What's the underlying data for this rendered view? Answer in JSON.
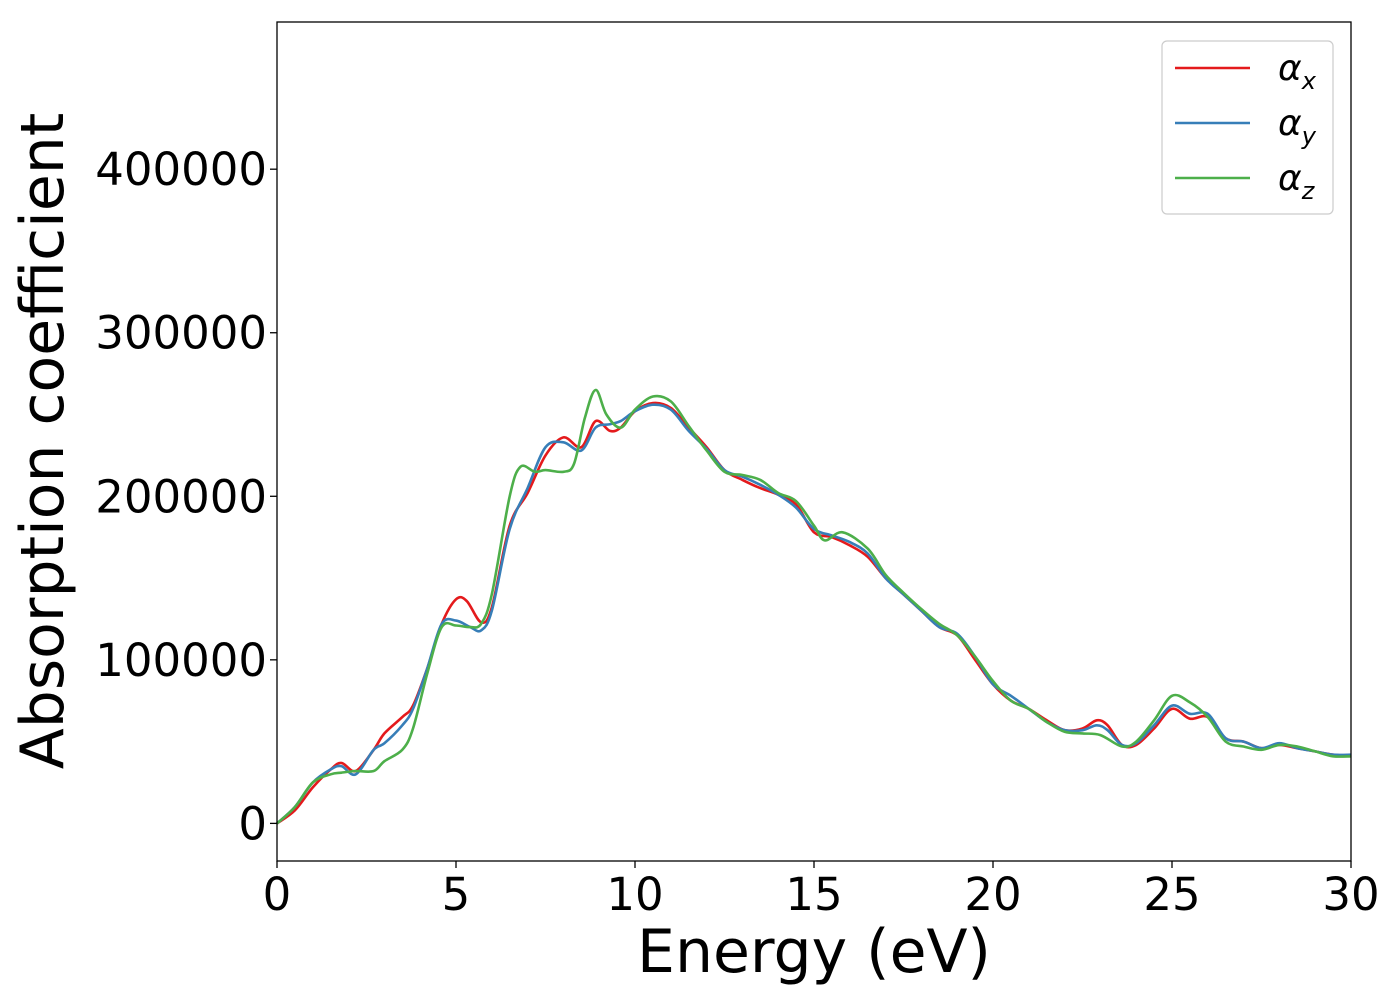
{
  "chart_data": {
    "type": "line",
    "title": "",
    "xlabel": "Energy (eV)",
    "ylabel": "Absorption coefficient",
    "xlim": [
      0,
      30
    ],
    "ylim": [
      -23000,
      490000
    ],
    "x_ticks": [
      0,
      5,
      10,
      15,
      20,
      25,
      30
    ],
    "y_ticks": [
      0,
      100000,
      200000,
      300000,
      400000
    ],
    "grid": false,
    "legend_position": "top-right",
    "series": [
      {
        "name": "α",
        "subscript": "x",
        "color": "#e41a1c",
        "points": [
          [
            0,
            0
          ],
          [
            0.5,
            8000
          ],
          [
            1,
            22000
          ],
          [
            1.5,
            33000
          ],
          [
            1.8,
            37000
          ],
          [
            2.2,
            32000
          ],
          [
            2.7,
            45000
          ],
          [
            3,
            55000
          ],
          [
            3.5,
            65000
          ],
          [
            3.8,
            72000
          ],
          [
            4.2,
            95000
          ],
          [
            4.6,
            122000
          ],
          [
            5,
            137000
          ],
          [
            5.3,
            136000
          ],
          [
            5.7,
            123000
          ],
          [
            6,
            132000
          ],
          [
            6.5,
            182000
          ],
          [
            7,
            202000
          ],
          [
            7.5,
            225000
          ],
          [
            8,
            236000
          ],
          [
            8.5,
            230000
          ],
          [
            8.9,
            246000
          ],
          [
            9.3,
            240000
          ],
          [
            9.6,
            242000
          ],
          [
            10,
            252000
          ],
          [
            10.5,
            257000
          ],
          [
            11,
            254000
          ],
          [
            11.5,
            242000
          ],
          [
            12,
            230000
          ],
          [
            12.5,
            216000
          ],
          [
            13,
            210000
          ],
          [
            13.5,
            205000
          ],
          [
            14,
            201000
          ],
          [
            14.5,
            195000
          ],
          [
            15,
            178000
          ],
          [
            15.5,
            175000
          ],
          [
            16,
            170000
          ],
          [
            16.5,
            163000
          ],
          [
            17,
            150000
          ],
          [
            17.5,
            140000
          ],
          [
            18,
            130000
          ],
          [
            18.5,
            120000
          ],
          [
            19,
            115000
          ],
          [
            19.5,
            100000
          ],
          [
            20,
            85000
          ],
          [
            20.5,
            75000
          ],
          [
            21,
            70000
          ],
          [
            21.5,
            63000
          ],
          [
            22,
            57000
          ],
          [
            22.5,
            58000
          ],
          [
            22.9,
            63000
          ],
          [
            23.2,
            60000
          ],
          [
            23.6,
            48000
          ],
          [
            24,
            48000
          ],
          [
            24.5,
            58000
          ],
          [
            25,
            70000
          ],
          [
            25.5,
            64000
          ],
          [
            26,
            65000
          ],
          [
            26.5,
            52000
          ],
          [
            27,
            50000
          ],
          [
            27.5,
            46000
          ],
          [
            28,
            48000
          ],
          [
            28.5,
            46000
          ],
          [
            29,
            44000
          ],
          [
            29.5,
            42000
          ],
          [
            30,
            41000
          ]
        ]
      },
      {
        "name": "α",
        "subscript": "y",
        "color": "#377eb8",
        "points": [
          [
            0,
            0
          ],
          [
            0.5,
            10000
          ],
          [
            1,
            25000
          ],
          [
            1.5,
            33000
          ],
          [
            1.8,
            35000
          ],
          [
            2.2,
            30000
          ],
          [
            2.7,
            45000
          ],
          [
            3,
            49000
          ],
          [
            3.5,
            60000
          ],
          [
            3.8,
            70000
          ],
          [
            4.2,
            95000
          ],
          [
            4.6,
            122000
          ],
          [
            5,
            124000
          ],
          [
            5.4,
            120000
          ],
          [
            5.7,
            118000
          ],
          [
            6,
            130000
          ],
          [
            6.5,
            180000
          ],
          [
            7,
            205000
          ],
          [
            7.5,
            230000
          ],
          [
            8,
            233000
          ],
          [
            8.5,
            228000
          ],
          [
            8.9,
            242000
          ],
          [
            9.3,
            244000
          ],
          [
            9.6,
            246000
          ],
          [
            10,
            252000
          ],
          [
            10.5,
            256000
          ],
          [
            11,
            253000
          ],
          [
            11.5,
            240000
          ],
          [
            12,
            229000
          ],
          [
            12.5,
            216000
          ],
          [
            13,
            212000
          ],
          [
            13.5,
            207000
          ],
          [
            14,
            201000
          ],
          [
            14.5,
            193000
          ],
          [
            15,
            180000
          ],
          [
            15.5,
            176000
          ],
          [
            16,
            172000
          ],
          [
            16.5,
            165000
          ],
          [
            17,
            150000
          ],
          [
            17.5,
            140000
          ],
          [
            18,
            130000
          ],
          [
            18.5,
            120000
          ],
          [
            19,
            116000
          ],
          [
            19.5,
            102000
          ],
          [
            20,
            85000
          ],
          [
            20.5,
            78000
          ],
          [
            21,
            70000
          ],
          [
            21.5,
            62000
          ],
          [
            22,
            57000
          ],
          [
            22.5,
            57000
          ],
          [
            22.9,
            60000
          ],
          [
            23.2,
            57000
          ],
          [
            23.6,
            48000
          ],
          [
            24,
            49000
          ],
          [
            24.5,
            60000
          ],
          [
            25,
            72000
          ],
          [
            25.5,
            67000
          ],
          [
            26,
            67000
          ],
          [
            26.5,
            52000
          ],
          [
            27,
            50000
          ],
          [
            27.5,
            46000
          ],
          [
            28,
            49000
          ],
          [
            28.5,
            46000
          ],
          [
            29,
            44000
          ],
          [
            29.5,
            42000
          ],
          [
            30,
            42000
          ]
        ]
      },
      {
        "name": "α",
        "subscript": "z",
        "color": "#4daf4a",
        "points": [
          [
            0,
            0
          ],
          [
            0.5,
            10000
          ],
          [
            1,
            25000
          ],
          [
            1.5,
            30000
          ],
          [
            1.8,
            31000
          ],
          [
            2.2,
            32000
          ],
          [
            2.7,
            32000
          ],
          [
            3,
            38000
          ],
          [
            3.5,
            45000
          ],
          [
            3.8,
            58000
          ],
          [
            4.2,
            92000
          ],
          [
            4.6,
            120000
          ],
          [
            5,
            121000
          ],
          [
            5.4,
            120000
          ],
          [
            5.7,
            122000
          ],
          [
            6,
            140000
          ],
          [
            6.5,
            200000
          ],
          [
            6.8,
            218000
          ],
          [
            7.2,
            215000
          ],
          [
            7.5,
            216000
          ],
          [
            8,
            215000
          ],
          [
            8.3,
            220000
          ],
          [
            8.6,
            248000
          ],
          [
            8.9,
            265000
          ],
          [
            9.2,
            250000
          ],
          [
            9.6,
            242000
          ],
          [
            10,
            253000
          ],
          [
            10.5,
            261000
          ],
          [
            11,
            258000
          ],
          [
            11.5,
            243000
          ],
          [
            12,
            228000
          ],
          [
            12.5,
            215000
          ],
          [
            13,
            213000
          ],
          [
            13.5,
            210000
          ],
          [
            14,
            202000
          ],
          [
            14.5,
            197000
          ],
          [
            15,
            182000
          ],
          [
            15.3,
            173000
          ],
          [
            15.8,
            178000
          ],
          [
            16.5,
            168000
          ],
          [
            17,
            152000
          ],
          [
            17.5,
            141000
          ],
          [
            18,
            131000
          ],
          [
            18.5,
            122000
          ],
          [
            19,
            115000
          ],
          [
            19.5,
            102000
          ],
          [
            20,
            87000
          ],
          [
            20.5,
            75000
          ],
          [
            21,
            70000
          ],
          [
            21.5,
            62000
          ],
          [
            22,
            56000
          ],
          [
            22.5,
            55000
          ],
          [
            23,
            54000
          ],
          [
            23.6,
            47000
          ],
          [
            24,
            50000
          ],
          [
            24.5,
            63000
          ],
          [
            25,
            78000
          ],
          [
            25.5,
            74000
          ],
          [
            26,
            65000
          ],
          [
            26.5,
            50000
          ],
          [
            27,
            47000
          ],
          [
            27.5,
            45000
          ],
          [
            28,
            48000
          ],
          [
            28.5,
            47000
          ],
          [
            29,
            44000
          ],
          [
            29.5,
            41000
          ],
          [
            30,
            41000
          ]
        ]
      }
    ]
  }
}
